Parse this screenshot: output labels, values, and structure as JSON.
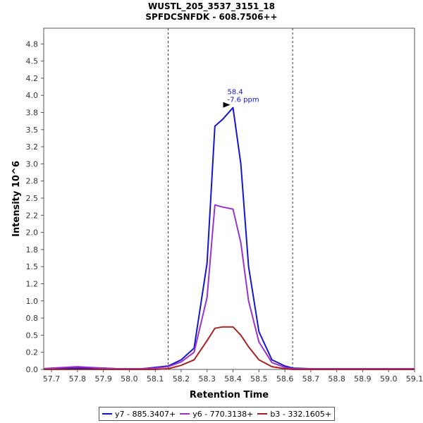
{
  "chart_data": {
    "type": "line",
    "title": "WUSTL_205_3537_3151_18",
    "subtitle": "SPFDCSNFDK - 608.7506++",
    "xlabel": "Retention Time",
    "ylabel": "Intensity 10^6",
    "xlim": [
      57.67,
      59.1
    ],
    "ylim": [
      0,
      4.98
    ],
    "xticks": [
      "57.7",
      "57.8",
      "57.9",
      "58.0",
      "58.1",
      "58.2",
      "58.3",
      "58.4",
      "58.5",
      "58.6",
      "58.7",
      "58.8",
      "58.9",
      "59.0",
      "59.1"
    ],
    "yticks": [
      "0.0",
      "0.2",
      "0.5",
      "0.8",
      "1.0",
      "1.2",
      "1.5",
      "1.8",
      "2.0",
      "2.2",
      "2.5",
      "2.8",
      "3.0",
      "3.2",
      "3.5",
      "3.8",
      "4.0",
      "4.2",
      "4.5",
      "4.8"
    ],
    "ytick_values": [
      0,
      0.25,
      0.5,
      0.75,
      1.0,
      1.25,
      1.5,
      1.75,
      2.0,
      2.25,
      2.5,
      2.75,
      3.0,
      3.25,
      3.5,
      3.75,
      4.0,
      4.25,
      4.5,
      4.75
    ],
    "vlines": [
      58.15,
      58.63
    ],
    "annotation": {
      "line1": "58.4",
      "line2": "-7.6 ppm",
      "x": 58.4,
      "y": 3.82
    },
    "legend_position": "bottom-center",
    "series": [
      {
        "name": "y7 - 885.3407+",
        "color": "#1515cc",
        "x": [
          57.67,
          57.75,
          57.8,
          57.85,
          57.9,
          57.95,
          58.0,
          58.05,
          58.1,
          58.15,
          58.2,
          58.25,
          58.3,
          58.33,
          58.36,
          58.4,
          58.43,
          58.46,
          58.5,
          58.55,
          58.6,
          58.63,
          58.7,
          58.8,
          58.9,
          59.0,
          59.1
        ],
        "values": [
          0.01,
          0.015,
          0.02,
          0.02,
          0.02,
          0.01,
          0.01,
          0.01,
          0.03,
          0.05,
          0.14,
          0.31,
          1.55,
          3.55,
          3.65,
          3.82,
          3.0,
          1.5,
          0.55,
          0.14,
          0.05,
          0.02,
          0.01,
          0.01,
          0.01,
          0.01,
          0.01
        ]
      },
      {
        "name": "y6 - 770.3138+",
        "color": "#9933cc",
        "x": [
          57.67,
          57.7,
          57.75,
          57.8,
          57.85,
          57.9,
          57.95,
          58.0,
          58.05,
          58.1,
          58.15,
          58.2,
          58.25,
          58.3,
          58.33,
          58.36,
          58.4,
          58.43,
          58.46,
          58.5,
          58.55,
          58.6,
          58.63,
          58.7,
          59.1
        ],
        "values": [
          0.01,
          0.02,
          0.03,
          0.04,
          0.03,
          0.02,
          0.01,
          0.01,
          0.01,
          0.02,
          0.04,
          0.11,
          0.25,
          1.05,
          2.4,
          2.37,
          2.34,
          1.85,
          1.0,
          0.4,
          0.1,
          0.03,
          0.01,
          0.01,
          0.01
        ]
      },
      {
        "name": "b3 - 332.1605+",
        "color": "#aa2222",
        "x": [
          57.67,
          58.0,
          58.1,
          58.15,
          58.2,
          58.25,
          58.3,
          58.33,
          58.36,
          58.4,
          58.43,
          58.46,
          58.5,
          58.55,
          58.6,
          58.63,
          58.7,
          59.1
        ],
        "values": [
          0.0,
          0.0,
          0.0,
          0.01,
          0.06,
          0.14,
          0.42,
          0.6,
          0.62,
          0.62,
          0.5,
          0.33,
          0.14,
          0.04,
          0.01,
          0.0,
          0.0,
          0.0
        ]
      }
    ]
  }
}
